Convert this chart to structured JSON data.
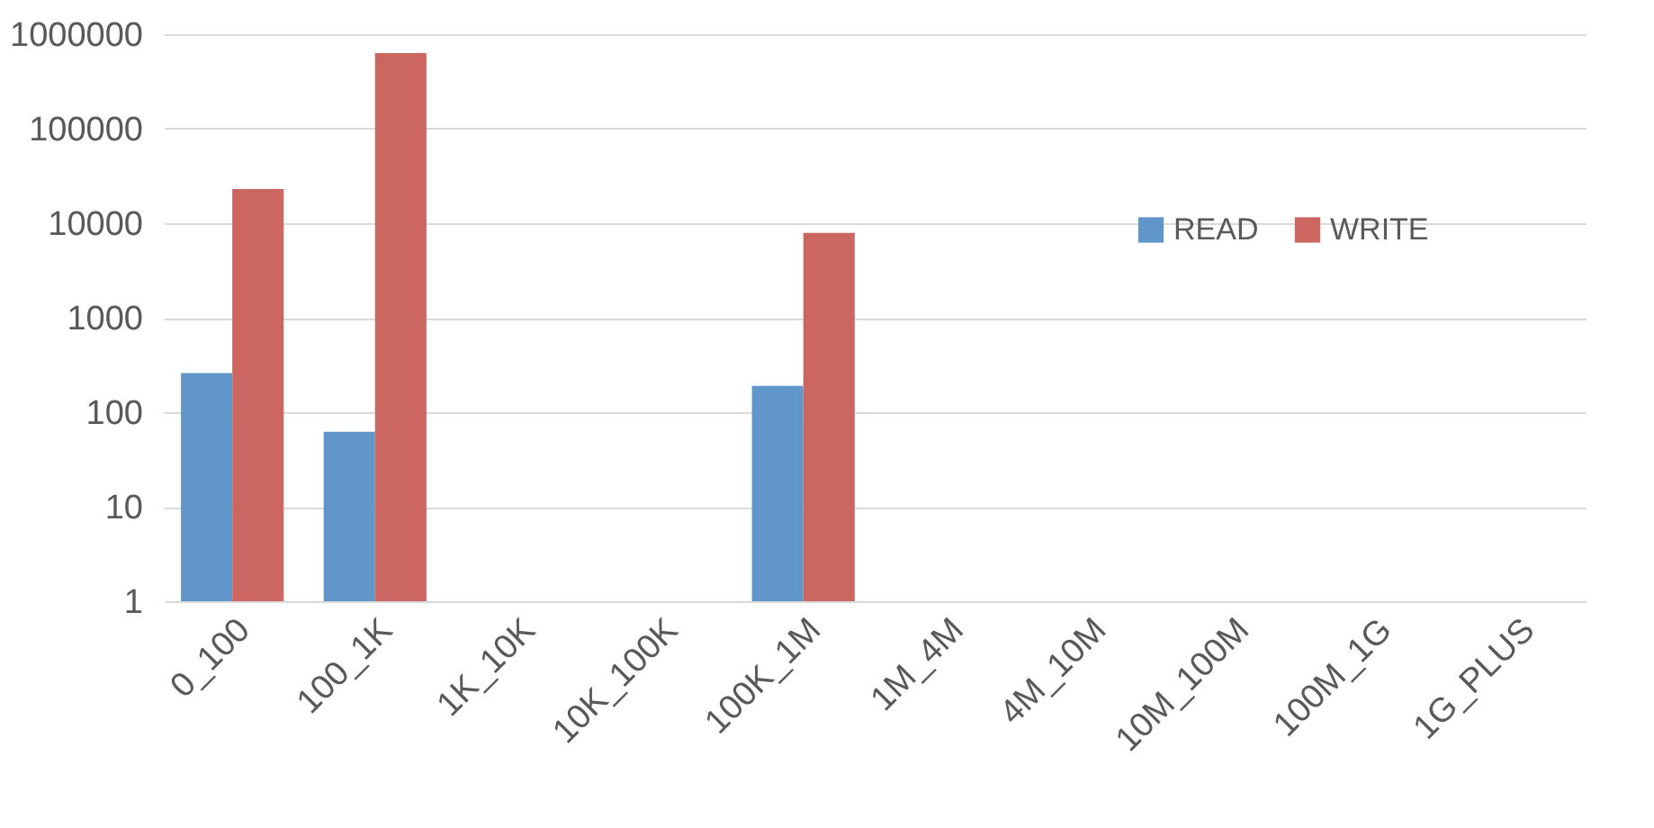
{
  "chart_data": {
    "type": "bar",
    "categories": [
      "0_100",
      "100_1K",
      "1K_10K",
      "10K_100K",
      "100K_1M",
      "1M_4M",
      "4M_10M",
      "10M_100M",
      "100M_1G",
      "1G_PLUS"
    ],
    "series": [
      {
        "name": "READ",
        "color": "#6096c9",
        "values": [
          260,
          62,
          null,
          null,
          190,
          null,
          null,
          null,
          null,
          null
        ]
      },
      {
        "name": "WRITE",
        "color": "#cc6660",
        "values": [
          23000,
          630000,
          null,
          null,
          7900,
          null,
          null,
          null,
          null,
          null
        ]
      }
    ],
    "log": "y",
    "ylim": [
      1,
      1000000
    ],
    "yticks": [
      1,
      10,
      100,
      1000,
      10000,
      100000,
      1000000
    ],
    "grid": "y",
    "legend": "right"
  }
}
